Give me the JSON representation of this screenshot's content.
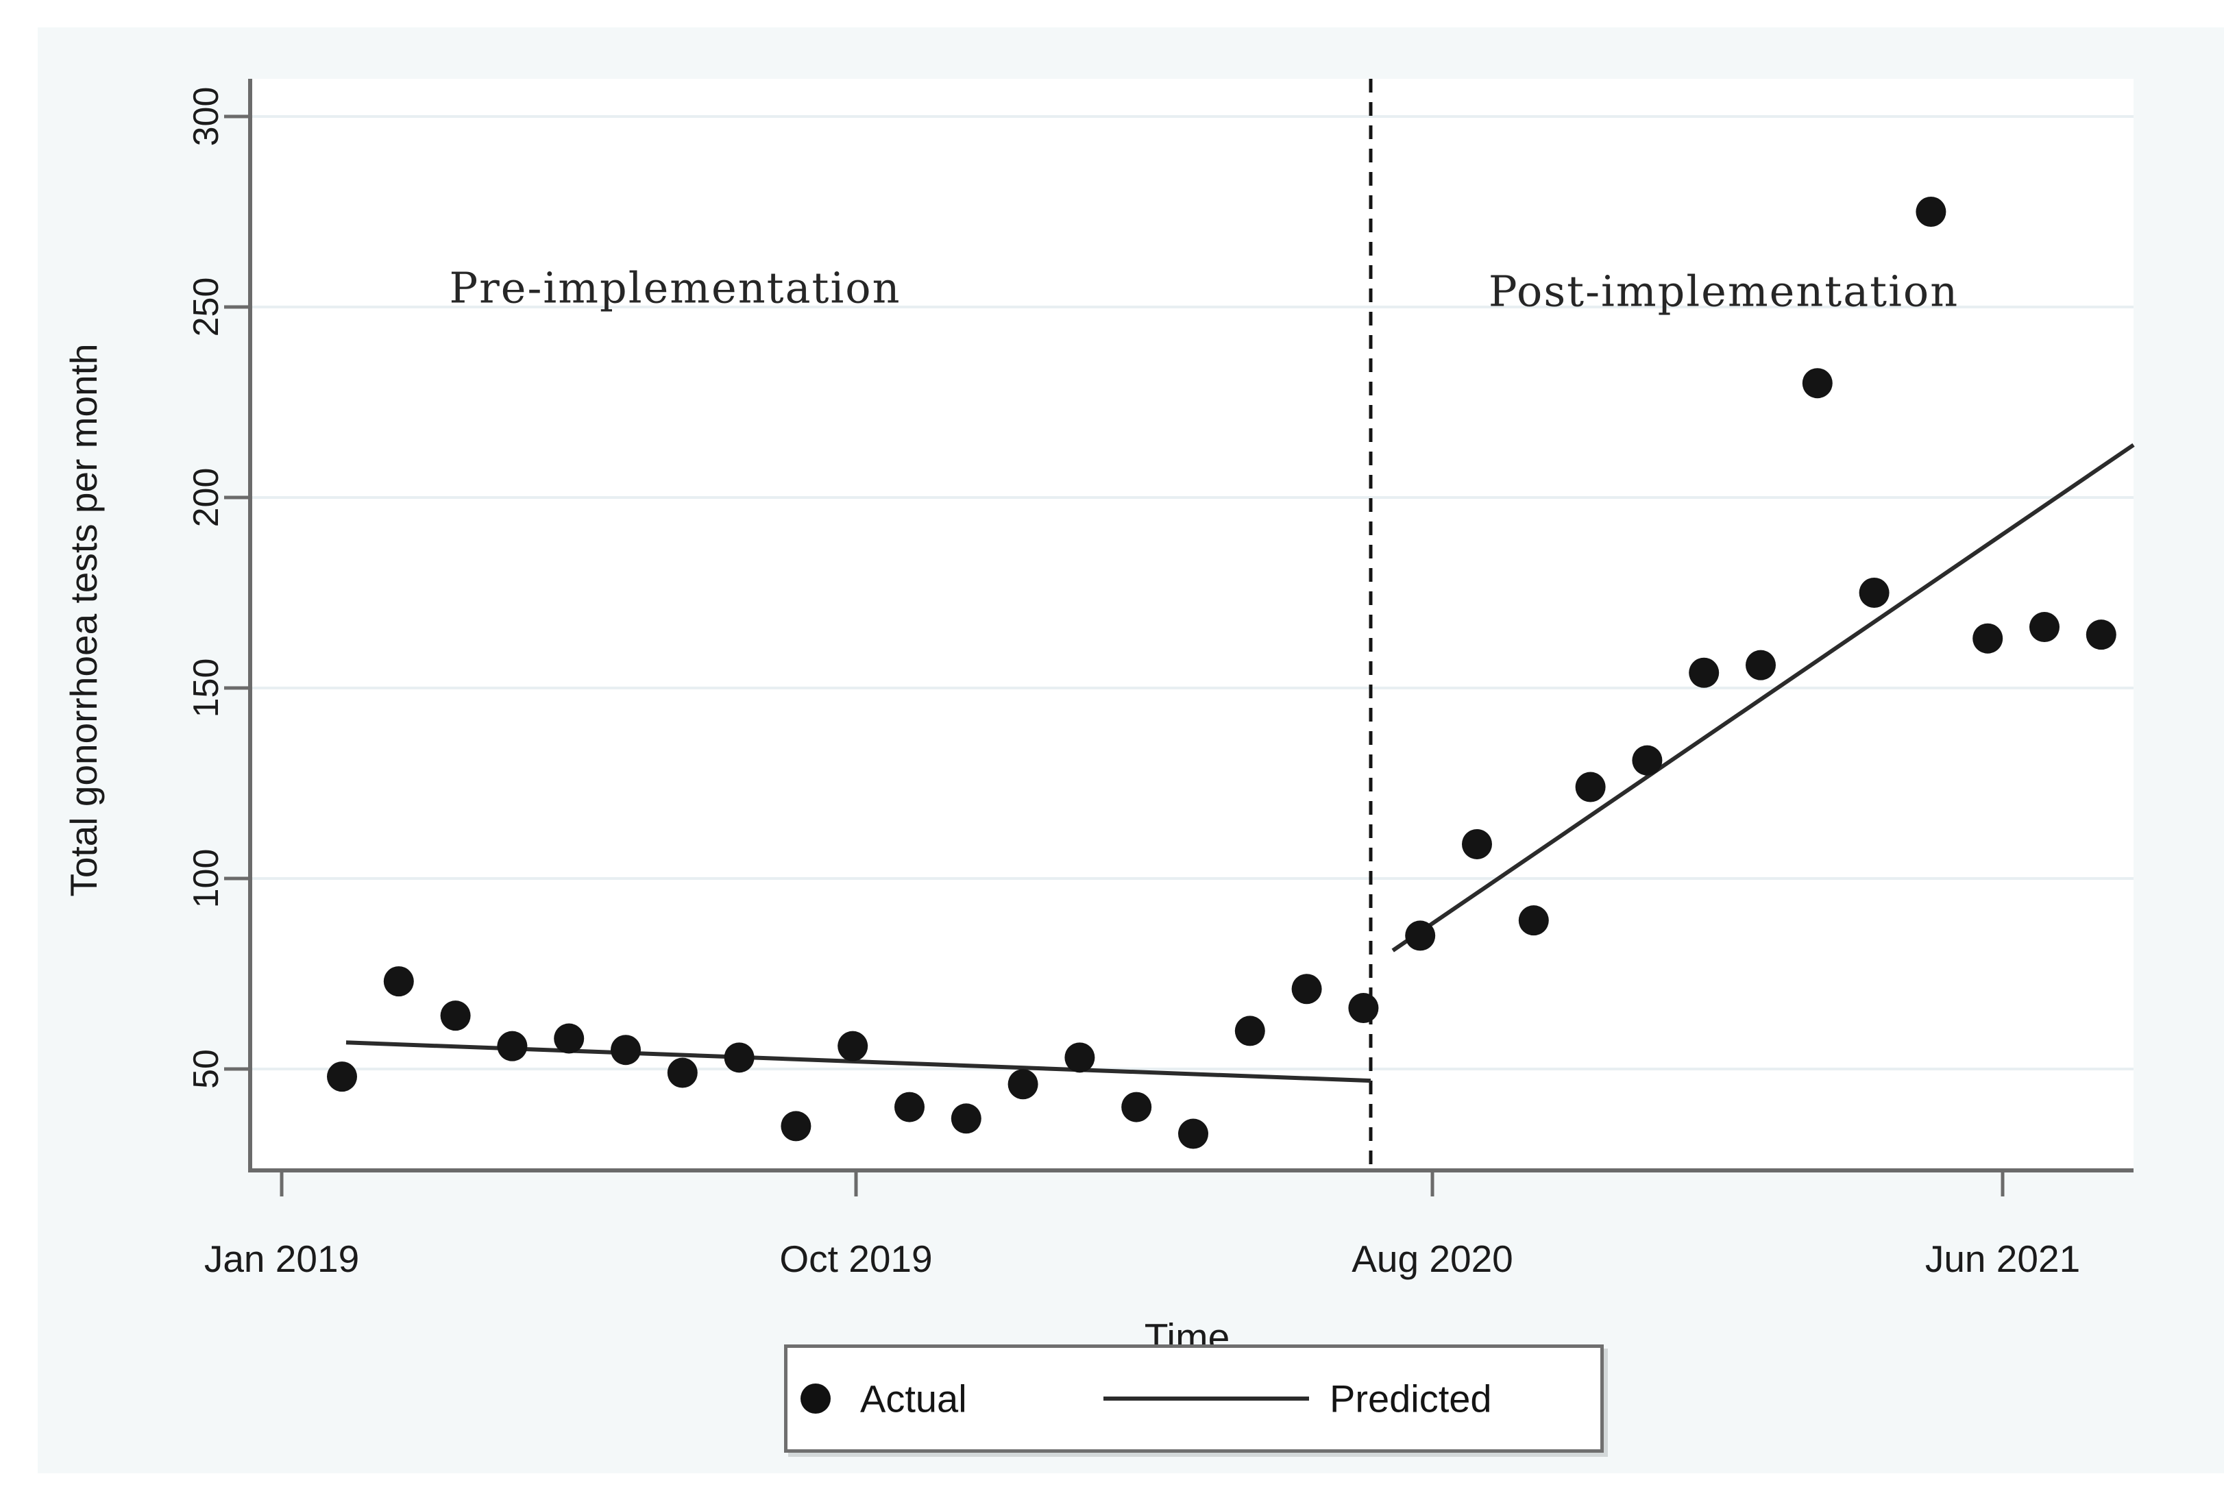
{
  "colors": {
    "page_background": "#ffffff",
    "figure_background": "#f4f8f9",
    "plot_background": "#ffffff",
    "axis": "#6b6b6b",
    "grid": "#e8eff2",
    "data": "#141414"
  },
  "chart_data": {
    "type": "scatter",
    "title": "",
    "xlabel": "Time",
    "ylabel": "Total gonorrhoea tests per month",
    "x": [
      "Jan 2019",
      "Feb 2019",
      "Mar 2019",
      "Apr 2019",
      "May 2019",
      "Jun 2019",
      "Jul 2019",
      "Aug 2019",
      "Sep 2019",
      "Oct 2019",
      "Nov 2019",
      "Dec 2019",
      "Jan 2020",
      "Feb 2020",
      "Mar 2020",
      "Apr 2020",
      "May 2020",
      "Jun 2020",
      "Jul 2020",
      "Aug 2020",
      "Sep 2020",
      "Oct 2020",
      "Nov 2020",
      "Dec 2020",
      "Jan 2021",
      "Feb 2021",
      "Mar 2021",
      "Apr 2021",
      "May 2021",
      "Jun 2021",
      "Jul 2021",
      "Aug 2021"
    ],
    "series": [
      {
        "name": "Actual",
        "type": "scatter",
        "values": [
          48,
          73,
          64,
          56,
          58,
          55,
          49,
          53,
          35,
          56,
          40,
          37,
          46,
          53,
          40,
          33,
          60,
          71,
          66,
          85,
          109,
          89,
          124,
          131,
          154,
          156,
          230,
          175,
          275,
          163,
          166,
          164
        ]
      },
      {
        "name": "Predicted",
        "type": "line",
        "segments": [
          {
            "period": "pre",
            "x_start": "Jan 2019",
            "y_start": 57,
            "x_end": "Jul 2020",
            "y_end": 47
          },
          {
            "period": "post",
            "x_start": "Aug 2020",
            "y_start": 86,
            "x_end": "Aug 2021",
            "y_end": 208
          }
        ]
      }
    ],
    "y_ticks": [
      50,
      100,
      150,
      200,
      250,
      300
    ],
    "x_tick_labels": [
      "Jan 2019",
      "Oct 2019",
      "Aug 2020",
      "Jun 2021"
    ],
    "ylim": [
      25,
      310
    ],
    "grid": true,
    "legend": {
      "position": "bottom-center",
      "entries": [
        "Actual",
        "Predicted"
      ]
    },
    "annotations": {
      "pre": "Pre-implementation",
      "post": "Post-implementation"
    },
    "intervention_line": {
      "style": "dashed",
      "between": [
        "Jul 2020",
        "Aug 2020"
      ]
    }
  }
}
